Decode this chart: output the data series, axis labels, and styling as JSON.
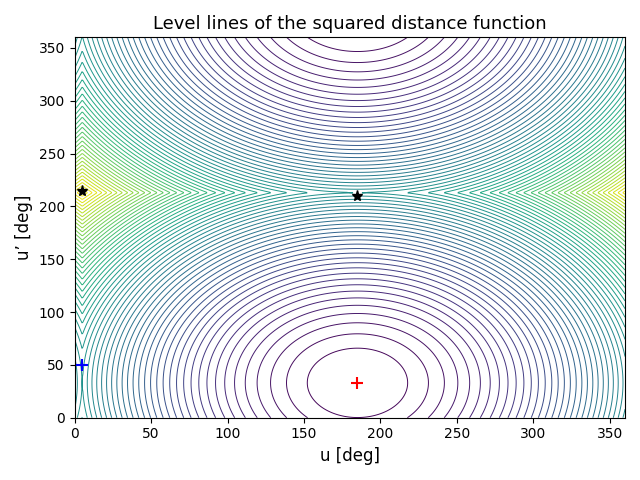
{
  "title": "Level lines of the squared distance function",
  "xlabel": "u [deg]",
  "ylabel": "u’ [deg]",
  "xlim": [
    0,
    360
  ],
  "ylim": [
    0,
    360
  ],
  "xticks": [
    0,
    50,
    100,
    150,
    200,
    250,
    300,
    350
  ],
  "yticks": [
    0,
    50,
    100,
    150,
    200,
    250,
    300,
    350
  ],
  "ref_point": [
    185.0,
    33.0
  ],
  "blue_plus": [
    5.0,
    50.0
  ],
  "star1": [
    5.0,
    215.0
  ],
  "star2": [
    185.0,
    210.0
  ],
  "n_contours": 60,
  "colormap": "viridis",
  "figsize": [
    6.4,
    4.8
  ],
  "dpi": 100
}
